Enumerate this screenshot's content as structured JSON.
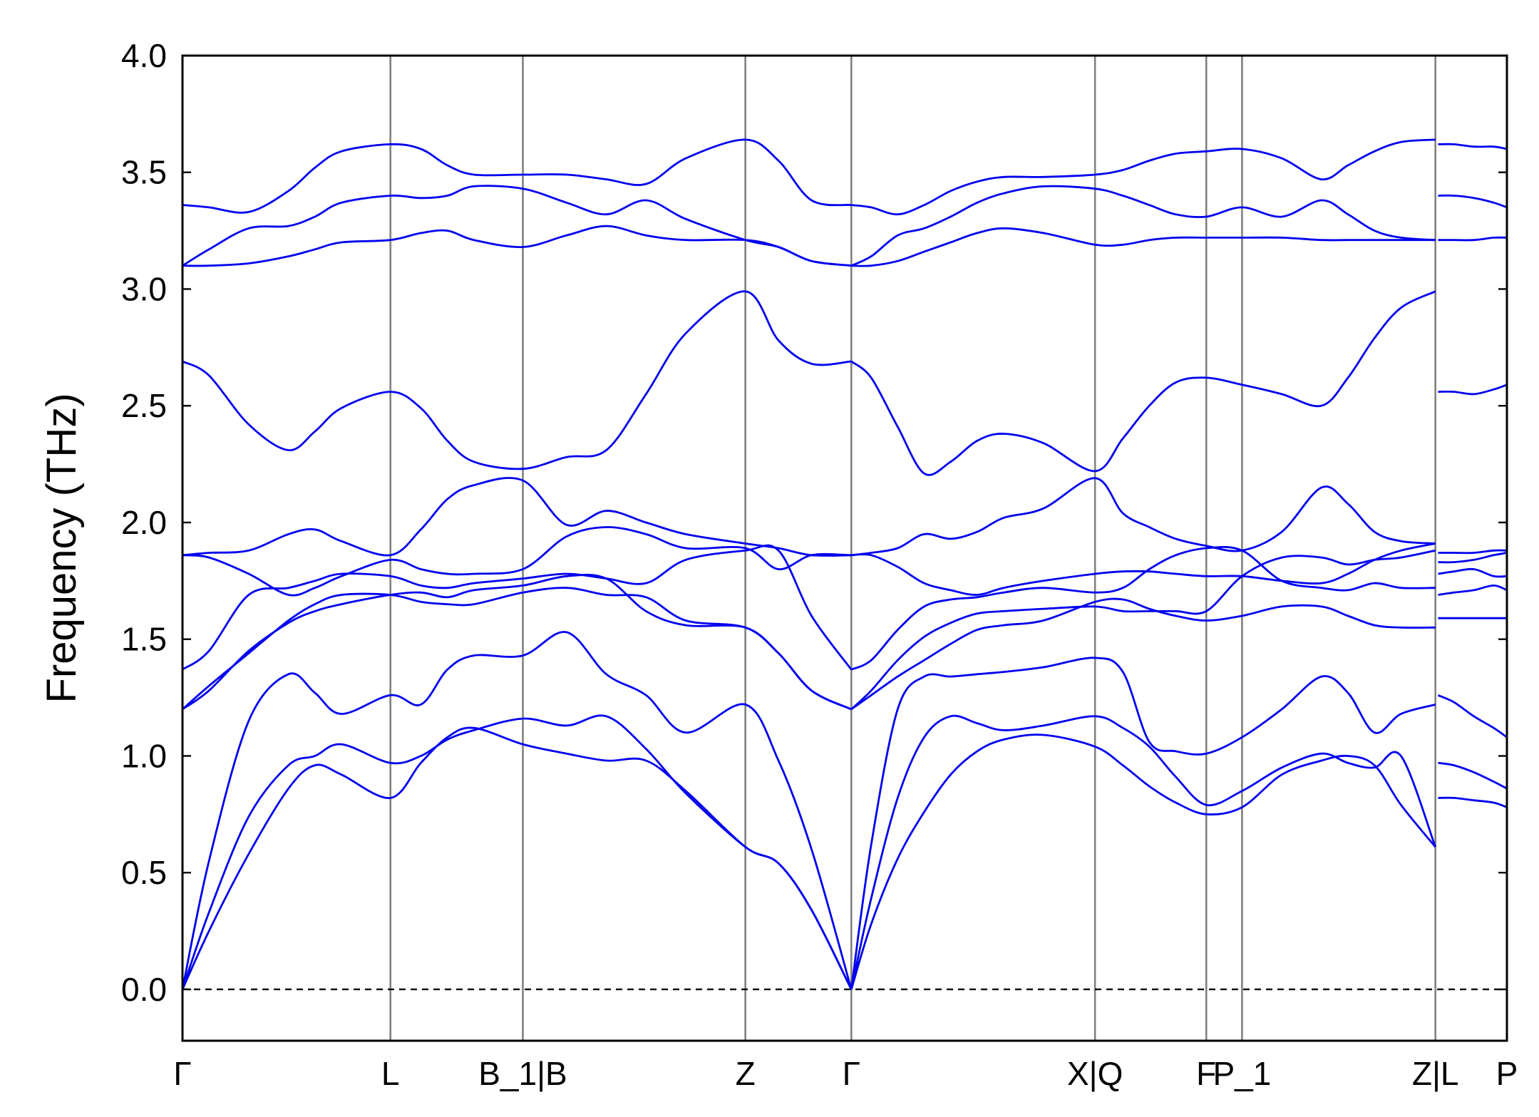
{
  "chart_data": {
    "type": "line",
    "title": "",
    "xlabel": "",
    "ylabel": "Frequency (THz)",
    "ylim": [
      -0.22,
      4.0
    ],
    "y_ticks": [
      0.0,
      0.5,
      1.0,
      1.5,
      2.0,
      2.5,
      3.0,
      3.5,
      4.0
    ],
    "y_tick_labels": [
      "0.0",
      "0.5",
      "1.0",
      "1.5",
      "2.0",
      "2.5",
      "3.0",
      "3.5",
      "4.0"
    ],
    "x_range": [
      0.0,
      1.0
    ],
    "high_symmetry_points": [
      {
        "label": "Γ",
        "x": 0.0
      },
      {
        "label": "L",
        "x": 0.157
      },
      {
        "label": "B_1|B",
        "x": 0.257
      },
      {
        "label": "Z",
        "x": 0.425
      },
      {
        "label": "Γ",
        "x": 0.505
      },
      {
        "label": "X|Q",
        "x": 0.689
      },
      {
        "label": "F",
        "x": 0.773
      },
      {
        "label": "P_1",
        "x": 0.8
      },
      {
        "label": "Z|L",
        "x": 0.946
      },
      {
        "label": "P",
        "x": 1.0
      }
    ],
    "vertical_lines_x": [
      0.157,
      0.257,
      0.425,
      0.505,
      0.689,
      0.773,
      0.8,
      0.946
    ],
    "zero_line": {
      "y": 0.0,
      "style": "dashed",
      "color": "#000000"
    },
    "band_color": "#0000ee",
    "vline_color": "#808080",
    "segments": [
      {
        "x": [
          0.0,
          0.02,
          0.05,
          0.08,
          0.1,
          0.12,
          0.157,
          0.18,
          0.2,
          0.22,
          0.257,
          0.29,
          0.32,
          0.35,
          0.38,
          0.425,
          0.45,
          0.475,
          0.505
        ],
        "bands": [
          [
            0.0,
            0.25,
            0.58,
            0.86,
            0.96,
            0.92,
            0.82,
            0.97,
            1.08,
            1.12,
            1.05,
            1.01,
            0.98,
            0.98,
            0.85,
            0.61,
            0.54,
            0.34,
            0.0
          ],
          [
            0.0,
            0.33,
            0.74,
            0.96,
            1.0,
            1.05,
            0.97,
            1.0,
            1.07,
            1.11,
            1.16,
            1.13,
            1.17,
            1.03,
            0.84,
            0.61,
            0.54,
            0.34,
            0.0
          ],
          [
            0.0,
            0.55,
            1.15,
            1.35,
            1.27,
            1.18,
            1.26,
            1.22,
            1.37,
            1.43,
            1.43,
            1.53,
            1.35,
            1.26,
            1.1,
            1.22,
            0.98,
            0.6,
            0.0
          ],
          [
            1.2,
            1.3,
            1.44,
            1.58,
            1.65,
            1.69,
            1.69,
            1.66,
            1.65,
            1.65,
            1.7,
            1.72,
            1.69,
            1.68,
            1.58,
            1.55,
            1.44,
            1.28,
            1.2
          ],
          [
            1.2,
            1.28,
            1.45,
            1.57,
            1.62,
            1.65,
            1.69,
            1.7,
            1.68,
            1.71,
            1.73,
            1.77,
            1.76,
            1.62,
            1.56,
            1.55,
            1.44,
            1.28,
            1.2
          ],
          [
            1.37,
            1.45,
            1.69,
            1.72,
            1.75,
            1.78,
            1.77,
            1.73,
            1.72,
            1.74,
            1.76,
            1.78,
            1.76,
            1.74,
            1.84,
            1.88,
            1.88,
            1.6,
            1.37
          ],
          [
            1.86,
            1.85,
            1.78,
            1.69,
            1.72,
            1.77,
            1.84,
            1.8,
            1.78,
            1.78,
            1.8,
            1.94,
            1.98,
            1.95,
            1.89,
            1.89,
            1.8,
            1.86,
            1.86
          ],
          [
            1.86,
            1.87,
            1.88,
            1.95,
            1.97,
            1.92,
            1.86,
            1.97,
            2.1,
            2.16,
            2.18,
            1.99,
            2.05,
            2.0,
            1.95,
            1.91,
            1.89,
            1.86,
            1.86
          ],
          [
            2.69,
            2.63,
            2.42,
            2.31,
            2.39,
            2.49,
            2.56,
            2.49,
            2.35,
            2.26,
            2.23,
            2.28,
            2.31,
            2.55,
            2.81,
            2.99,
            2.78,
            2.68,
            2.69
          ],
          [
            3.1,
            3.1,
            3.11,
            3.14,
            3.17,
            3.2,
            3.21,
            3.24,
            3.25,
            3.21,
            3.18,
            3.23,
            3.27,
            3.23,
            3.21,
            3.21,
            3.18,
            3.12,
            3.1
          ],
          [
            3.1,
            3.17,
            3.26,
            3.27,
            3.31,
            3.37,
            3.4,
            3.39,
            3.4,
            3.44,
            3.43,
            3.37,
            3.32,
            3.38,
            3.3,
            3.21,
            3.18,
            3.12,
            3.1
          ],
          [
            3.36,
            3.35,
            3.33,
            3.42,
            3.52,
            3.59,
            3.62,
            3.6,
            3.53,
            3.49,
            3.49,
            3.49,
            3.47,
            3.45,
            3.56,
            3.64,
            3.55,
            3.38,
            3.36
          ]
        ]
      },
      {
        "x": [
          0.505,
          0.52,
          0.54,
          0.56,
          0.58,
          0.6,
          0.62,
          0.65,
          0.689,
          0.71,
          0.73,
          0.75,
          0.773,
          0.8,
          0.83,
          0.86,
          0.88,
          0.9,
          0.92,
          0.946
        ],
        "bands": [
          [
            0.0,
            0.28,
            0.56,
            0.76,
            0.92,
            1.02,
            1.07,
            1.09,
            1.04,
            0.96,
            0.87,
            0.8,
            0.75,
            0.78,
            0.92,
            0.98,
            1.0,
            0.96,
            0.79,
            0.61
          ],
          [
            0.0,
            0.39,
            0.82,
            1.08,
            1.17,
            1.14,
            1.11,
            1.13,
            1.17,
            1.12,
            1.04,
            0.91,
            0.79,
            0.85,
            0.95,
            1.01,
            0.97,
            0.95,
            1.0,
            0.61
          ],
          [
            0.0,
            0.62,
            1.2,
            1.34,
            1.34,
            1.35,
            1.36,
            1.38,
            1.42,
            1.36,
            1.06,
            1.02,
            1.01,
            1.08,
            1.2,
            1.34,
            1.27,
            1.1,
            1.18,
            1.22
          ],
          [
            1.2,
            1.26,
            1.34,
            1.41,
            1.48,
            1.54,
            1.56,
            1.58,
            1.66,
            1.67,
            1.63,
            1.6,
            1.58,
            1.6,
            1.64,
            1.64,
            1.6,
            1.56,
            1.55,
            1.55
          ],
          [
            1.2,
            1.28,
            1.41,
            1.51,
            1.57,
            1.61,
            1.62,
            1.63,
            1.64,
            1.62,
            1.62,
            1.62,
            1.62,
            1.77,
            1.85,
            1.85,
            1.82,
            1.84,
            1.85,
            1.88
          ],
          [
            1.37,
            1.41,
            1.54,
            1.64,
            1.67,
            1.68,
            1.7,
            1.72,
            1.7,
            1.72,
            1.8,
            1.86,
            1.89,
            1.88,
            1.75,
            1.72,
            1.71,
            1.74,
            1.72,
            1.72
          ],
          [
            1.86,
            1.86,
            1.81,
            1.74,
            1.71,
            1.69,
            1.72,
            1.75,
            1.78,
            1.79,
            1.79,
            1.78,
            1.77,
            1.77,
            1.75,
            1.74,
            1.78,
            1.84,
            1.88,
            1.91
          ],
          [
            1.86,
            1.87,
            1.89,
            1.95,
            1.93,
            1.96,
            2.02,
            2.06,
            2.19,
            2.04,
            1.98,
            1.93,
            1.9,
            1.88,
            1.96,
            2.15,
            2.08,
            1.96,
            1.92,
            1.91
          ],
          [
            2.69,
            2.62,
            2.41,
            2.21,
            2.26,
            2.35,
            2.38,
            2.34,
            2.22,
            2.36,
            2.5,
            2.6,
            2.62,
            2.59,
            2.55,
            2.5,
            2.62,
            2.79,
            2.92,
            2.99
          ],
          [
            3.1,
            3.1,
            3.12,
            3.16,
            3.2,
            3.24,
            3.26,
            3.24,
            3.19,
            3.19,
            3.21,
            3.22,
            3.22,
            3.22,
            3.22,
            3.21,
            3.21,
            3.21,
            3.21,
            3.21
          ],
          [
            3.1,
            3.14,
            3.23,
            3.26,
            3.31,
            3.37,
            3.41,
            3.44,
            3.43,
            3.4,
            3.36,
            3.32,
            3.31,
            3.35,
            3.31,
            3.38,
            3.32,
            3.25,
            3.22,
            3.21
          ],
          [
            3.36,
            3.35,
            3.32,
            3.36,
            3.42,
            3.46,
            3.48,
            3.48,
            3.49,
            3.51,
            3.55,
            3.58,
            3.59,
            3.6,
            3.56,
            3.47,
            3.53,
            3.59,
            3.63,
            3.64
          ]
        ]
      },
      {
        "x": [
          0.948,
          0.96,
          0.975,
          0.99,
          1.0
        ],
        "bands": [
          [
            0.82,
            0.82,
            0.81,
            0.8,
            0.78
          ],
          [
            0.97,
            0.96,
            0.93,
            0.89,
            0.86
          ],
          [
            1.26,
            1.23,
            1.17,
            1.12,
            1.08
          ],
          [
            1.59,
            1.59,
            1.59,
            1.59,
            1.59
          ],
          [
            1.69,
            1.7,
            1.71,
            1.73,
            1.71
          ],
          [
            1.78,
            1.79,
            1.8,
            1.77,
            1.77
          ],
          [
            1.83,
            1.83,
            1.84,
            1.86,
            1.87
          ],
          [
            1.87,
            1.87,
            1.87,
            1.88,
            1.88
          ],
          [
            2.56,
            2.56,
            2.55,
            2.57,
            2.59
          ],
          [
            3.21,
            3.21,
            3.21,
            3.22,
            3.22
          ],
          [
            3.4,
            3.4,
            3.39,
            3.37,
            3.35
          ],
          [
            3.62,
            3.62,
            3.61,
            3.61,
            3.6
          ]
        ]
      }
    ]
  }
}
